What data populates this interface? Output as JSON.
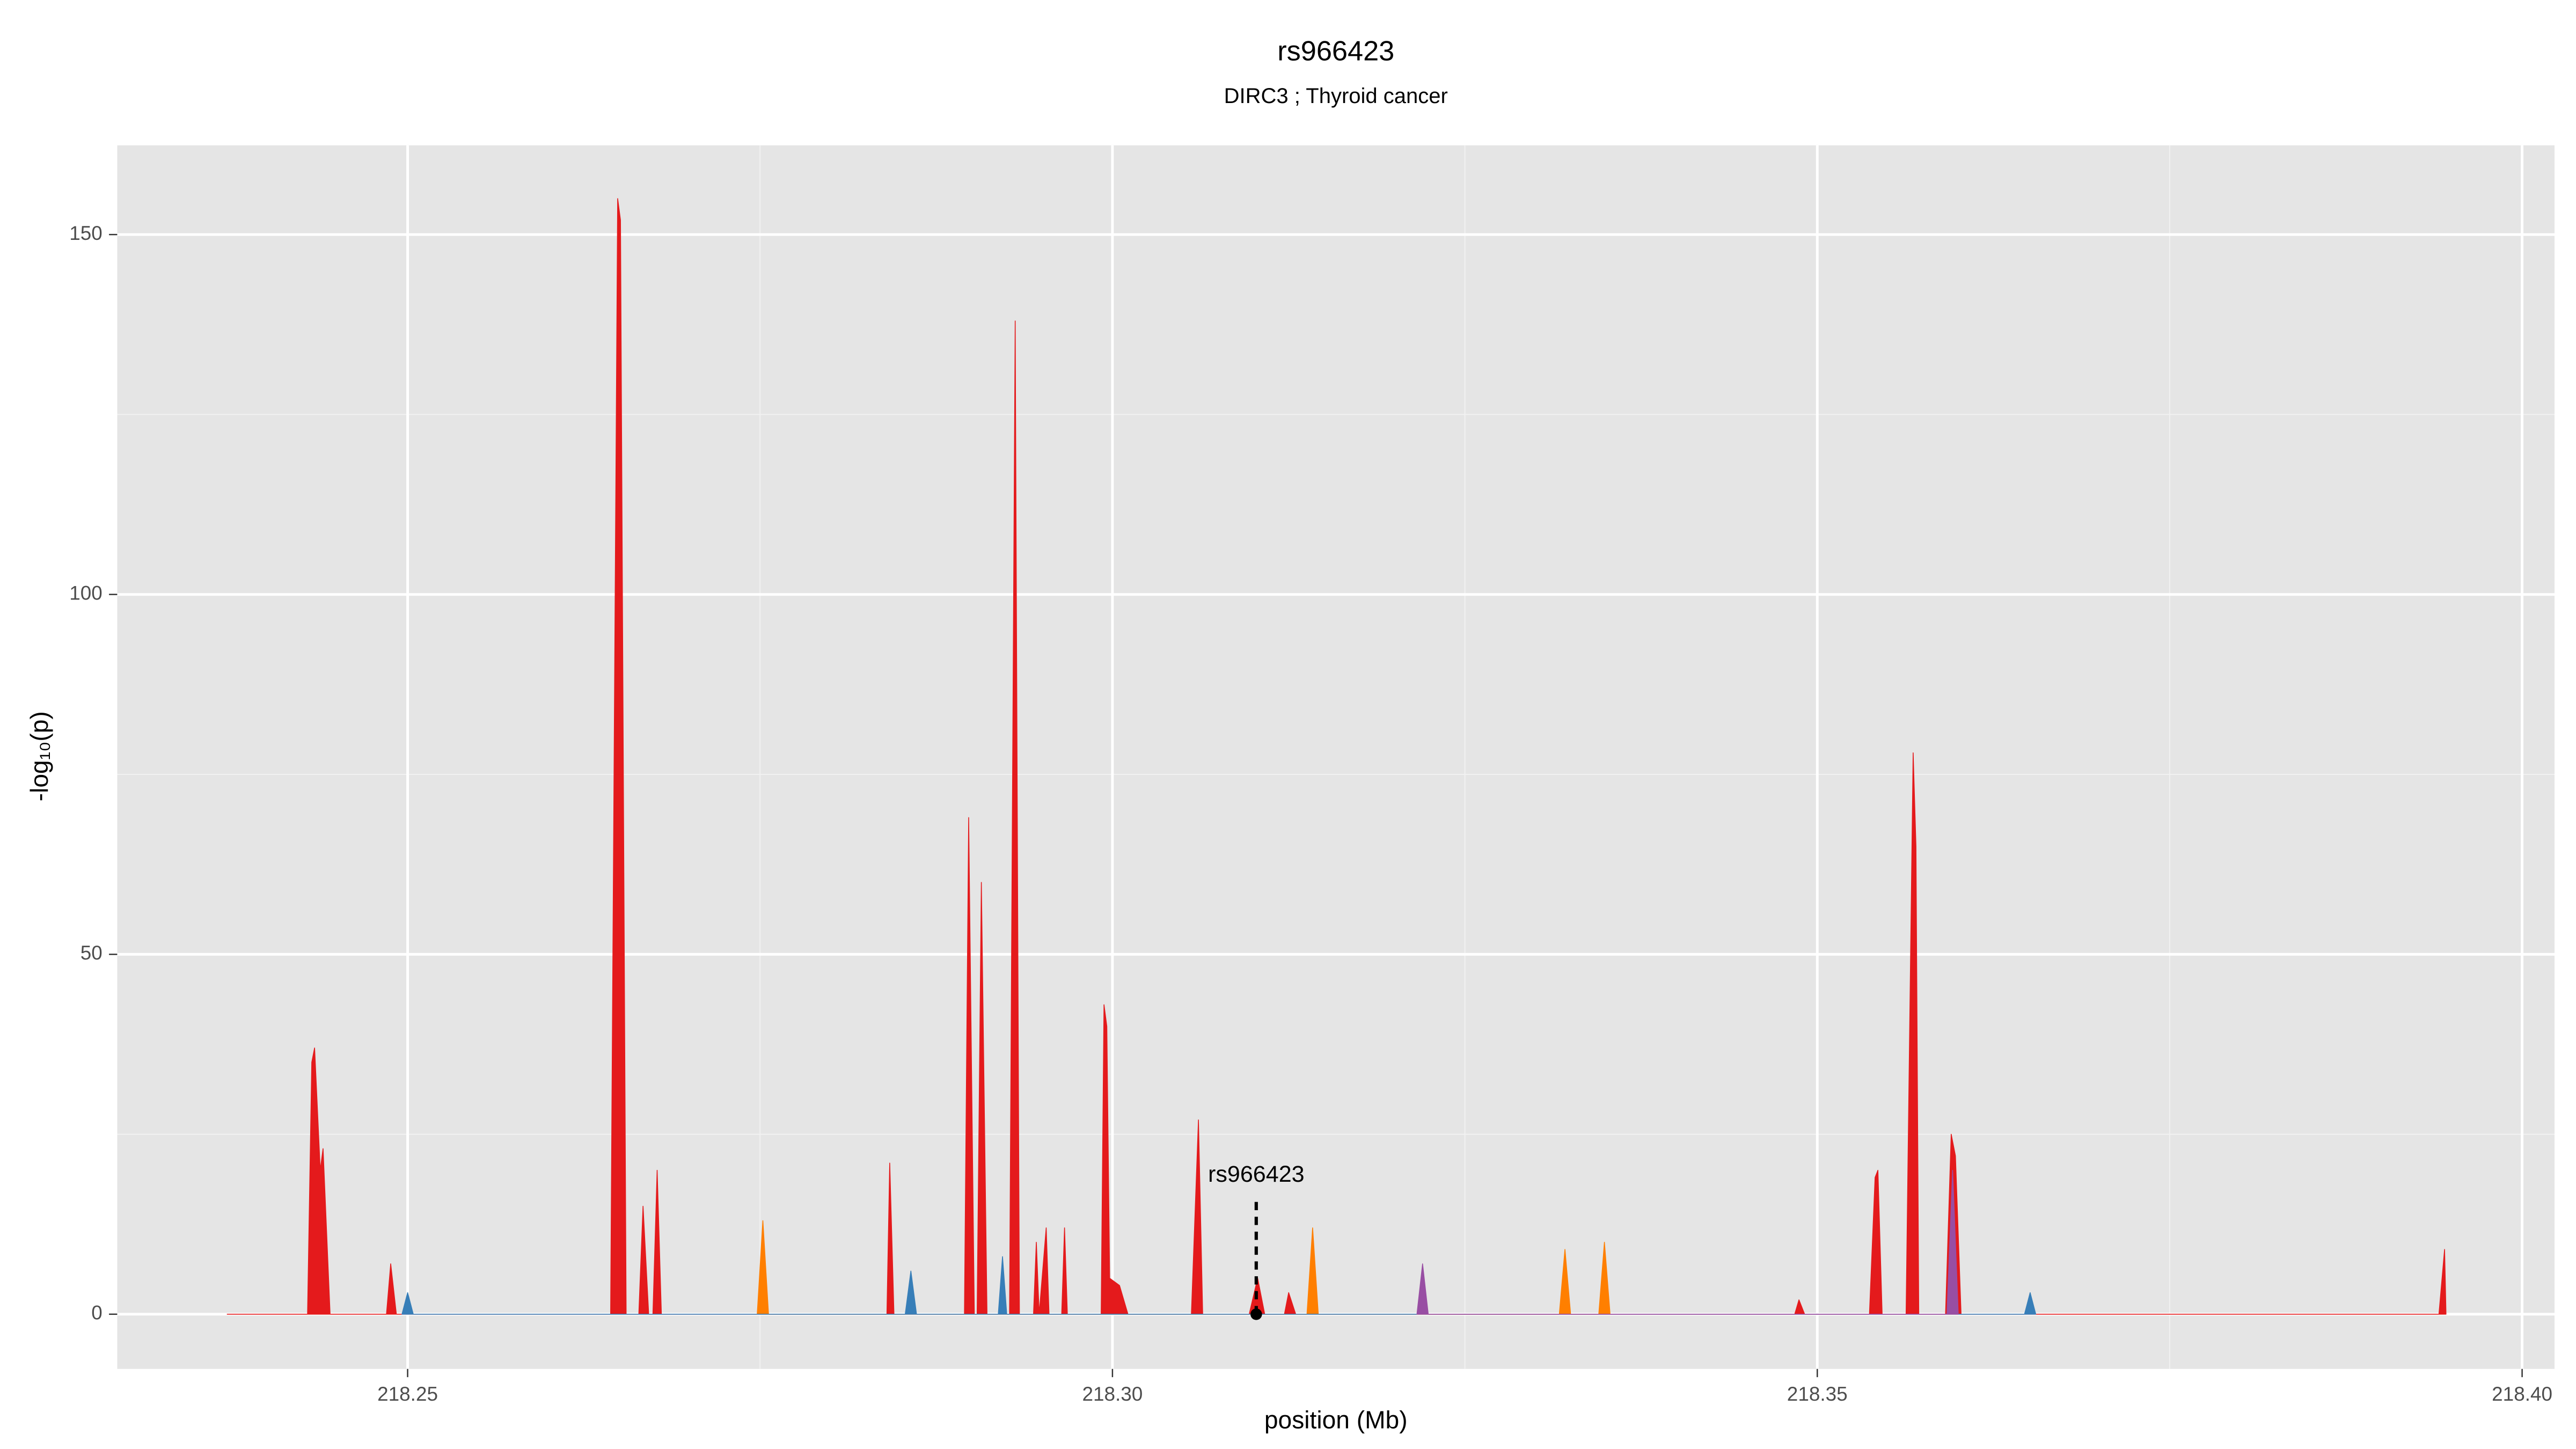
{
  "chart_data": {
    "type": "area",
    "title": "rs966423",
    "subtitle": "DIRC3 ; Thyroid cancer",
    "x_label": "position (Mb)",
    "y_label": "-log₁₀(p)",
    "xlim": [
      218.2294,
      218.4023
    ],
    "ylim": [
      -7.6,
      162.4
    ],
    "xticks": [
      {
        "value": 218.25,
        "label": "218.25"
      },
      {
        "value": 218.3,
        "label": "218.30"
      },
      {
        "value": 218.35,
        "label": "218.35"
      },
      {
        "value": 218.4,
        "label": "218.40"
      }
    ],
    "yticks": [
      0,
      50,
      100,
      150
    ],
    "x_minor_ticks": [
      218.275,
      218.325,
      218.375
    ],
    "y_minor_ticks": [
      25,
      75,
      125
    ],
    "grid": true,
    "series": [
      {
        "color": "#e41a1c",
        "x": [
          218.2372,
          218.2429,
          218.2432,
          218.2434,
          218.2438,
          218.244,
          218.2445,
          218.2485,
          218.2488,
          218.2492,
          218.2644,
          218.2649,
          218.2651,
          218.2655,
          218.2664,
          218.2667,
          218.2671,
          218.2674,
          218.2677,
          218.268,
          218.284,
          218.2842,
          218.2845,
          218.2895,
          218.2898,
          218.2902,
          218.2904,
          218.2907,
          218.2911,
          218.2927,
          218.2931,
          218.2934,
          218.2944,
          218.2946,
          218.2948,
          218.2953,
          218.2955,
          218.2964,
          218.2966,
          218.2968,
          218.2992,
          218.2994,
          218.2996,
          218.2998,
          218.3005,
          218.3011,
          218.3056,
          218.3061,
          218.3064,
          218.3097,
          218.3103,
          218.3108,
          218.3122,
          218.3125,
          218.313,
          218.3484,
          218.3487,
          218.3491,
          218.3537,
          218.3541,
          218.3543,
          218.3546,
          218.3563,
          218.3568,
          218.357,
          218.3572,
          218.3591,
          218.3595,
          218.3598,
          218.3602,
          218.3941,
          218.3945,
          218.3946
        ],
        "values": [
          0,
          0,
          35,
          37,
          20,
          23,
          0,
          0,
          7,
          0,
          0,
          155,
          152,
          0,
          0,
          15,
          0,
          0,
          20,
          0,
          0,
          21,
          0,
          0,
          69,
          0,
          0,
          60,
          0,
          0,
          138,
          0,
          0,
          10,
          0,
          12,
          0,
          0,
          12,
          0,
          0,
          43,
          40,
          5,
          4,
          0,
          0,
          27,
          0,
          0,
          5,
          0,
          0,
          3,
          0,
          0,
          2,
          0,
          0,
          19,
          20,
          0,
          0,
          78,
          65,
          0,
          0,
          25,
          22,
          0,
          0,
          9,
          0
        ]
      },
      {
        "color": "#ff7f00",
        "x": [
          218.2748,
          218.2752,
          218.2756,
          218.3138,
          218.3142,
          218.3146,
          218.3317,
          218.3321,
          218.3325,
          218.3345,
          218.3349,
          218.3353
        ],
        "values": [
          0,
          13,
          0,
          0,
          12,
          0,
          0,
          9,
          0,
          0,
          10,
          0
        ]
      },
      {
        "color": "#377eb8",
        "x": [
          218.2496,
          218.25,
          218.2504,
          218.2853,
          218.2857,
          218.2861,
          218.2919,
          218.2922,
          218.2925,
          218.3647,
          218.3651,
          218.3655
        ],
        "values": [
          0,
          3,
          0,
          0,
          6,
          0,
          0,
          8,
          0,
          0,
          3,
          0
        ]
      },
      {
        "color": "#984ea3",
        "x": [
          218.3216,
          218.322,
          218.3224,
          218.3592,
          218.3596,
          218.36
        ],
        "values": [
          0,
          7,
          0,
          0,
          20,
          0
        ]
      }
    ],
    "annotations": [
      {
        "text": "rs966423",
        "x": 218.3102,
        "y": 0
      }
    ]
  }
}
